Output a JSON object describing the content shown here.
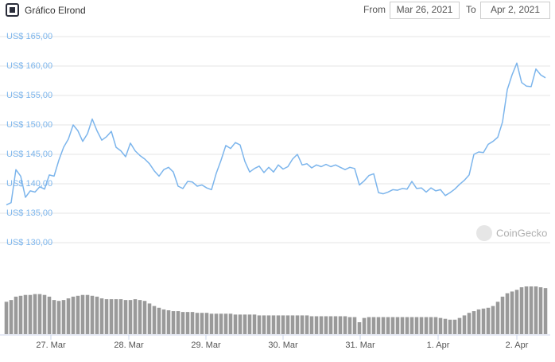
{
  "chart_data": {
    "type": "line",
    "title": "Gráfico Elrond",
    "from_label": "From",
    "from_date": "Mar 26, 2021",
    "to_label": "To",
    "to_date": "Apr 2, 2021",
    "watermark": "CoinGecko",
    "color": "#7cb5ec",
    "volume_color": "#9a9a9a",
    "grid": true,
    "ylim": [
      130,
      165
    ],
    "yticks": [
      {
        "value": 130,
        "label": "US$ 130,00"
      },
      {
        "value": 135,
        "label": "US$ 135,00"
      },
      {
        "value": 140,
        "label": "US$ 140,00"
      },
      {
        "value": 145,
        "label": "US$ 145,00"
      },
      {
        "value": 150,
        "label": "US$ 150,00"
      },
      {
        "value": 155,
        "label": "US$ 155,00"
      },
      {
        "value": 160,
        "label": "US$ 160,00"
      },
      {
        "value": 165,
        "label": "US$ 165,00"
      }
    ],
    "xlim": [
      0,
      113
    ],
    "xticks": [
      {
        "value": 9.33,
        "label": "27. Mar"
      },
      {
        "value": 25.67,
        "label": "28. Mar"
      },
      {
        "value": 41.83,
        "label": "29. Mar"
      },
      {
        "value": 58,
        "label": "30. Mar"
      },
      {
        "value": 74.17,
        "label": "31. Mar"
      },
      {
        "value": 90.5,
        "label": "1. Apr"
      },
      {
        "value": 107,
        "label": "2. Apr"
      }
    ],
    "values": [
      136.4,
      136.8,
      142.4,
      141.3,
      137.7,
      138.8,
      138.6,
      139.5,
      139.1,
      141.5,
      141.3,
      144.0,
      146.2,
      147.6,
      150.0,
      149.0,
      147.2,
      148.5,
      151.0,
      149.0,
      147.4,
      148.0,
      148.9,
      146.2,
      145.6,
      144.6,
      146.9,
      145.6,
      144.8,
      144.2,
      143.4,
      142.2,
      141.3,
      142.4,
      142.8,
      142.0,
      139.6,
      139.2,
      140.4,
      140.3,
      139.6,
      139.8,
      139.3,
      139.0,
      141.8,
      144.0,
      146.5,
      146.0,
      147.0,
      146.6,
      143.8,
      142.0,
      142.6,
      143.0,
      141.9,
      142.8,
      142.0,
      143.2,
      142.5,
      142.9,
      144.2,
      145.0,
      143.2,
      143.4,
      142.7,
      143.2,
      142.9,
      143.3,
      142.9,
      143.2,
      142.8,
      142.4,
      142.8,
      142.6,
      139.8,
      140.5,
      141.4,
      141.7,
      138.5,
      138.3,
      138.6,
      139.0,
      138.9,
      139.2,
      139.1,
      140.4,
      139.2,
      139.3,
      138.6,
      139.3,
      138.8,
      139.0,
      138.0,
      138.5,
      139.1,
      139.9,
      140.6,
      141.5,
      145.0,
      145.4,
      145.3,
      146.7,
      147.2,
      147.9,
      150.5,
      156.0,
      158.5,
      160.5,
      157.2,
      156.6,
      156.5,
      159.5,
      158.5,
      158.0
    ],
    "volume": [
      38,
      40,
      44,
      45,
      46,
      46,
      47,
      47,
      46,
      44,
      40,
      39,
      40,
      42,
      44,
      45,
      46,
      46,
      45,
      44,
      42,
      41,
      41,
      41,
      41,
      40,
      40,
      41,
      40,
      39,
      36,
      33,
      31,
      29,
      28,
      27,
      27,
      26,
      26,
      26,
      25,
      25,
      25,
      24,
      24,
      24,
      24,
      24,
      23,
      23,
      23,
      23,
      23,
      22,
      22,
      22,
      22,
      22,
      22,
      22,
      22,
      22,
      22,
      22,
      21,
      21,
      21,
      21,
      21,
      21,
      21,
      21,
      20,
      20,
      14,
      19,
      20,
      20,
      20,
      20,
      20,
      20,
      20,
      20,
      20,
      20,
      20,
      20,
      20,
      20,
      20,
      19,
      18,
      17,
      17,
      19,
      22,
      25,
      27,
      29,
      30,
      31,
      33,
      38,
      44,
      48,
      50,
      52,
      55,
      56,
      56,
      56,
      55,
      54
    ]
  }
}
